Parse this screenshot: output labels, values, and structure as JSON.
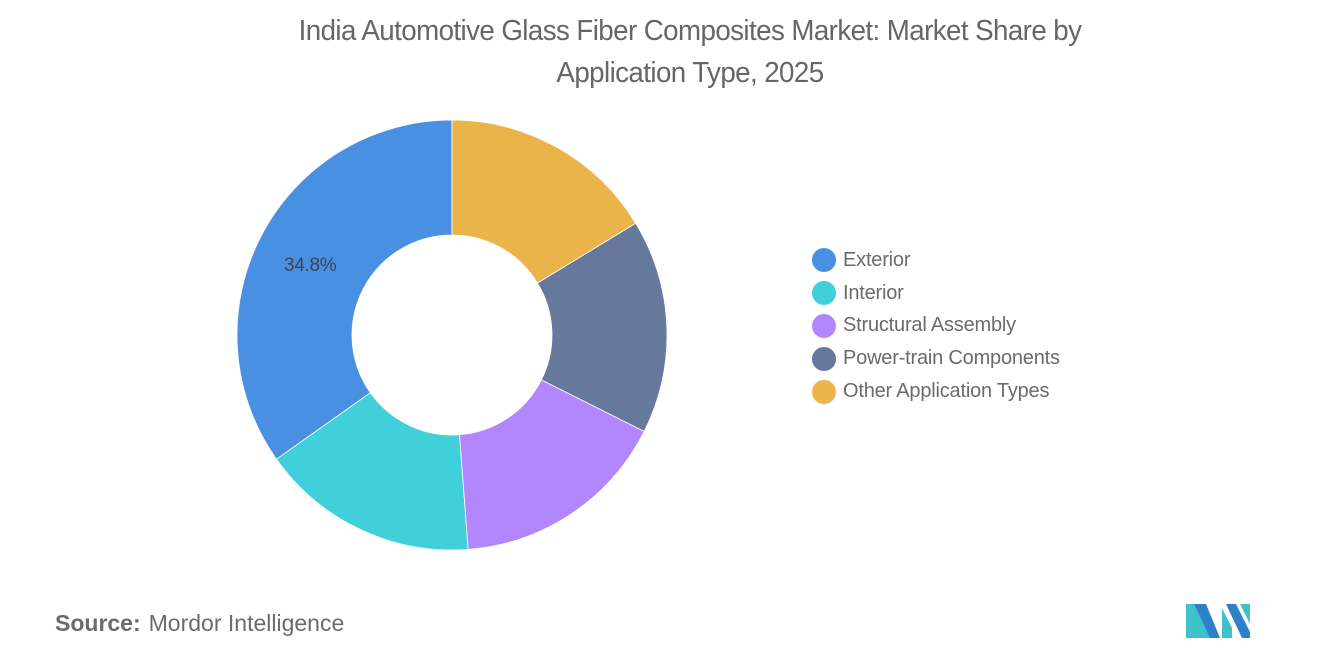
{
  "title": {
    "line1": "India Automotive Glass Fiber Composites Market: Market Share by",
    "line2": "Application Type, 2025"
  },
  "source": {
    "label": "Source:",
    "value": "Mordor Intelligence"
  },
  "logo": {
    "icon": "mordor-intelligence-logo-icon",
    "colors": [
      "#2f80c8",
      "#3fc1c9"
    ]
  },
  "chart_data": {
    "type": "pie",
    "variant": "donut",
    "title": "India Automotive Glass Fiber Composites Market: Market Share by Application Type, 2025",
    "start_angle_deg": 0,
    "direction": "counterclockwise-from-top",
    "categories": [
      "Exterior",
      "Interior",
      "Structural Assembly",
      "Power-train Components",
      "Other Application Types"
    ],
    "values": [
      34.8,
      16.4,
      16.4,
      16.1,
      16.3
    ],
    "colors": [
      "#4a90e2",
      "#41d0da",
      "#b286fd",
      "#66789c",
      "#ebb44b"
    ],
    "labels_shown": [
      {
        "category": "Exterior",
        "text": "34.8%"
      }
    ],
    "legend_position": "right",
    "xlabel": "",
    "ylabel": ""
  },
  "legend": {
    "items": [
      {
        "label": "Exterior",
        "color": "#4a90e2"
      },
      {
        "label": "Interior",
        "color": "#41d0da"
      },
      {
        "label": "Structural Assembly",
        "color": "#b286fd"
      },
      {
        "label": "Power-train Components",
        "color": "#66789c"
      },
      {
        "label": "Other Application Types",
        "color": "#ebb44b"
      }
    ]
  }
}
